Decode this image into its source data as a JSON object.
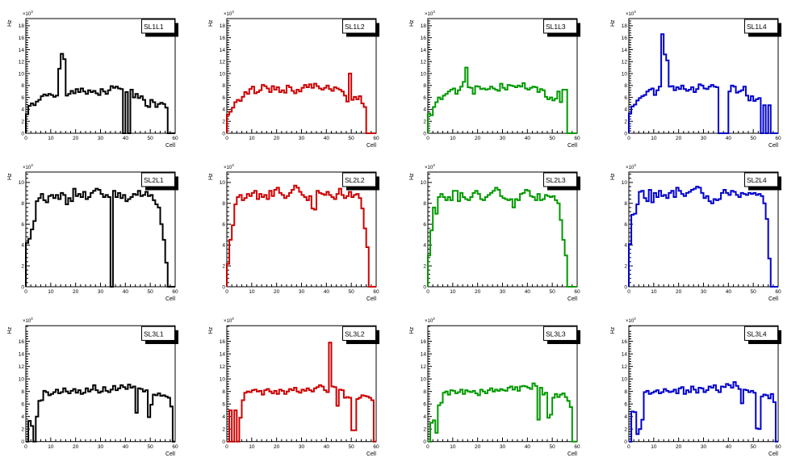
{
  "canvas": {
    "background": "#ffffff",
    "grid_rows": 3,
    "grid_cols": 4
  },
  "axes": {
    "x_title": "Cell",
    "y_title": "Hz",
    "scale_base": "×10",
    "scale_exponent": "3",
    "x_min": 0,
    "x_max": 60,
    "x_major_step": 10,
    "x_minor_step": 2,
    "y_major_step": 2,
    "y_minor_step": 0.4,
    "grid": "off",
    "tick_direction": "in"
  },
  "row_axis": [
    {
      "y_max": 19.2,
      "y_tick_max": 18
    },
    {
      "y_max": 11.0,
      "y_tick_max": 10
    },
    {
      "y_max": 18.5,
      "y_tick_max": 16
    }
  ],
  "colors": {
    "column1": "#000000",
    "column2": "#cc0000",
    "column3": "#009900",
    "column4": "#0000cc",
    "frame": "#000000",
    "pave_shadow": "#000000",
    "pave_fill": "#ffffff"
  },
  "chart_data": [
    {
      "type": "line",
      "subtype": "histogram-step",
      "title": "SL1L1",
      "color": "#000000",
      "row": 0,
      "col": 0,
      "xlabel": "Cell",
      "ylabel": "Hz",
      "y_scale": 1000,
      "x_range": [
        0,
        60
      ],
      "y_range": [
        0,
        19.2
      ],
      "bins": [
        3.2,
        4.6,
        5.0,
        4.7,
        5.3,
        5.6,
        6.2,
        6.5,
        6.3,
        6.6,
        6.4,
        6.1,
        6.3,
        10.8,
        13.3,
        12.4,
        6.3,
        6.6,
        7.1,
        6.7,
        7.4,
        6.9,
        7.5,
        7.0,
        6.6,
        7.2,
        6.9,
        7.1,
        6.7,
        6.4,
        7.4,
        7.0,
        6.6,
        7.2,
        7.9,
        7.6,
        7.8,
        7.5,
        7.4,
        0,
        6.9,
        0,
        7.3,
        6.0,
        6.6,
        5.9,
        6.2,
        5.6,
        4.6,
        4.4,
        5.6,
        5.2,
        4.4,
        4.9,
        5.1,
        4.9,
        4.3,
        0,
        0,
        0
      ]
    },
    {
      "type": "line",
      "subtype": "histogram-step",
      "title": "SL1L2",
      "color": "#cc0000",
      "row": 0,
      "col": 1,
      "xlabel": "Cell",
      "ylabel": "Hz",
      "y_scale": 1000,
      "x_range": [
        0,
        60
      ],
      "y_range": [
        0,
        19.2
      ],
      "bins": [
        3.1,
        3.6,
        4.3,
        5.2,
        5.6,
        5.4,
        6.1,
        6.9,
        6.6,
        7.4,
        7.8,
        6.7,
        6.9,
        7.2,
        8.1,
        7.9,
        7.5,
        6.9,
        7.9,
        7.3,
        7.7,
        6.9,
        7.2,
        6.8,
        8.0,
        7.7,
        7.1,
        6.7,
        7.3,
        7.0,
        7.6,
        8.1,
        7.7,
        8.2,
        7.6,
        8.3,
        7.9,
        7.5,
        7.3,
        7.6,
        8.0,
        7.4,
        7.1,
        7.7,
        7.5,
        7.3,
        7.0,
        6.3,
        5.3,
        10.0,
        5.6,
        6.1,
        5.7,
        6.2,
        5.0,
        4.4,
        0,
        0,
        0,
        0
      ]
    },
    {
      "type": "line",
      "subtype": "histogram-step",
      "title": "SL1L3",
      "color": "#009900",
      "row": 0,
      "col": 2,
      "xlabel": "Cell",
      "ylabel": "Hz",
      "y_scale": 1000,
      "x_range": [
        0,
        60
      ],
      "y_range": [
        0,
        19.2
      ],
      "bins": [
        3.3,
        3.0,
        4.4,
        5.2,
        6.0,
        5.7,
        6.3,
        6.6,
        7.0,
        7.3,
        7.5,
        6.6,
        7.2,
        7.8,
        8.6,
        11.0,
        7.7,
        7.6,
        6.6,
        7.9,
        7.8,
        7.4,
        7.5,
        7.3,
        7.4,
        7.8,
        7.5,
        7.3,
        7.1,
        8.3,
        7.6,
        7.3,
        8.1,
        8.0,
        7.9,
        7.7,
        8.0,
        7.8,
        8.4,
        7.5,
        7.3,
        7.6,
        7.8,
        7.7,
        6.9,
        7.4,
        7.2,
        6.1,
        5.7,
        6.0,
        5.5,
        5.8,
        7.0,
        5.2,
        7.3,
        7.3,
        0,
        0,
        0,
        0
      ]
    },
    {
      "type": "line",
      "subtype": "histogram-step",
      "title": "SL1L4",
      "color": "#0000cc",
      "row": 0,
      "col": 3,
      "xlabel": "Cell",
      "ylabel": "Hz",
      "y_scale": 1000,
      "x_range": [
        0,
        60
      ],
      "y_range": [
        0,
        19.2
      ],
      "bins": [
        3.3,
        4.5,
        4.8,
        5.5,
        5.9,
        6.2,
        6.4,
        7.0,
        7.3,
        7.5,
        6.4,
        7.2,
        7.8,
        16.6,
        13.2,
        12.2,
        7.8,
        7.9,
        7.2,
        7.7,
        7.4,
        8.0,
        7.4,
        7.1,
        7.3,
        7.7,
        6.9,
        7.4,
        8.2,
        8.0,
        7.5,
        7.4,
        7.8,
        8.1,
        7.8,
        7.7,
        0,
        0,
        0,
        0,
        7.0,
        8.0,
        7.8,
        6.8,
        7.0,
        7.2,
        7.8,
        6.3,
        5.5,
        6.2,
        5.4,
        5.7,
        5.9,
        0,
        4.7,
        0,
        4.7,
        0,
        0,
        0
      ]
    },
    {
      "type": "line",
      "subtype": "histogram-step",
      "title": "SL2L1",
      "color": "#000000",
      "row": 1,
      "col": 0,
      "xlabel": "Cell",
      "ylabel": "Hz",
      "y_scale": 1000,
      "x_range": [
        0,
        60
      ],
      "y_range": [
        0,
        11
      ],
      "bins": [
        4.2,
        4.6,
        5.5,
        6.3,
        8.2,
        8.5,
        8.9,
        8.3,
        8.1,
        8.7,
        8.8,
        8.5,
        8.8,
        8.4,
        9.0,
        8.8,
        7.9,
        8.5,
        8.2,
        9.4,
        8.7,
        8.9,
        8.6,
        9.1,
        8.4,
        8.6,
        9.0,
        9.2,
        9.4,
        9.3,
        8.9,
        8.6,
        8.8,
        8.6,
        0,
        9.2,
        8.6,
        9.0,
        8.5,
        8.8,
        8.2,
        8.4,
        8.6,
        8.9,
        8.8,
        9.2,
        8.7,
        8.8,
        9.1,
        8.7,
        8.8,
        8.3,
        7.9,
        7.6,
        6.0,
        4.5,
        2.3,
        0,
        0,
        0
      ]
    },
    {
      "type": "line",
      "subtype": "histogram-step",
      "title": "SL2L2",
      "color": "#cc0000",
      "row": 1,
      "col": 1,
      "xlabel": "Cell",
      "ylabel": "Hz",
      "y_scale": 1000,
      "x_range": [
        0,
        60
      ],
      "y_range": [
        0,
        11
      ],
      "bins": [
        2.2,
        4.5,
        5.9,
        7.9,
        8.6,
        8.8,
        8.3,
        8.5,
        8.9,
        8.7,
        9.0,
        9.2,
        8.4,
        8.9,
        8.6,
        8.8,
        8.4,
        9.2,
        8.7,
        9.3,
        9.5,
        9.0,
        8.8,
        8.5,
        8.7,
        9.0,
        9.3,
        9.7,
        9.5,
        9.1,
        8.8,
        8.6,
        8.3,
        8.7,
        7.5,
        7.4,
        9.2,
        9.0,
        8.9,
        8.8,
        9.1,
        8.8,
        8.6,
        8.4,
        8.9,
        9.4,
        8.8,
        8.5,
        8.7,
        9.1,
        8.6,
        8.8,
        8.9,
        8.5,
        7.5,
        5.6,
        3.8,
        0,
        0,
        0
      ]
    },
    {
      "type": "line",
      "subtype": "histogram-step",
      "title": "SL2L3",
      "color": "#009900",
      "row": 1,
      "col": 2,
      "xlabel": "Cell",
      "ylabel": "Hz",
      "y_scale": 1000,
      "x_range": [
        0,
        60
      ],
      "y_range": [
        0,
        11
      ],
      "bins": [
        3.0,
        5.4,
        7.6,
        7.0,
        8.6,
        8.9,
        8.6,
        8.3,
        8.6,
        8.3,
        9.2,
        9.2,
        8.2,
        9.0,
        8.6,
        8.4,
        8.3,
        8.6,
        9.0,
        9.2,
        8.9,
        8.4,
        8.3,
        8.6,
        8.8,
        9.0,
        9.2,
        9.5,
        9.3,
        8.7,
        8.5,
        8.4,
        8.3,
        8.4,
        7.6,
        8.4,
        8.3,
        8.9,
        9.0,
        9.3,
        9.2,
        8.7,
        8.6,
        8.3,
        8.9,
        8.3,
        8.4,
        8.8,
        8.7,
        8.6,
        8.7,
        8.3,
        8.0,
        6.4,
        4.5,
        3.0,
        0,
        0,
        0,
        0
      ]
    },
    {
      "type": "line",
      "subtype": "histogram-step",
      "title": "SL2L4",
      "color": "#0000cc",
      "row": 1,
      "col": 3,
      "xlabel": "Cell",
      "ylabel": "Hz",
      "y_scale": 1000,
      "x_range": [
        0,
        60
      ],
      "y_range": [
        0,
        11
      ],
      "bins": [
        4.1,
        6.9,
        7.0,
        7.9,
        9.1,
        9.2,
        8.5,
        8.2,
        9.3,
        8.1,
        9.0,
        8.6,
        9.2,
        8.7,
        8.8,
        8.5,
        9.0,
        9.2,
        8.6,
        9.5,
        9.2,
        8.9,
        8.7,
        9.0,
        9.1,
        9.3,
        9.4,
        9.6,
        9.5,
        9.0,
        8.5,
        8.7,
        8.2,
        8.0,
        8.4,
        8.3,
        8.4,
        9.0,
        9.3,
        9.0,
        8.8,
        9.2,
        9.1,
        8.8,
        8.6,
        9.0,
        8.9,
        8.8,
        9.0,
        8.9,
        9.0,
        8.8,
        8.9,
        8.7,
        8.0,
        6.5,
        2.7,
        0,
        0,
        0
      ]
    },
    {
      "type": "line",
      "subtype": "histogram-step",
      "title": "SL3L1",
      "color": "#000000",
      "row": 2,
      "col": 0,
      "xlabel": "Cell",
      "ylabel": "Hz",
      "y_scale": 1000,
      "x_range": [
        0,
        60
      ],
      "y_range": [
        0,
        18.5
      ],
      "bins": [
        0,
        3.3,
        2.5,
        0,
        4.0,
        6.5,
        6.6,
        8.1,
        7.9,
        7.4,
        7.6,
        7.9,
        8.3,
        7.7,
        7.9,
        8.5,
        8.0,
        7.7,
        8.1,
        8.4,
        7.8,
        8.2,
        7.6,
        7.8,
        8.5,
        8.0,
        8.3,
        9.0,
        8.2,
        7.8,
        8.0,
        8.7,
        8.1,
        7.9,
        8.3,
        8.9,
        8.2,
        8.5,
        9.0,
        8.7,
        8.4,
        9.1,
        8.6,
        8.8,
        4.6,
        8.5,
        8.4,
        8.0,
        8.2,
        3.9,
        5.9,
        7.5,
        7.4,
        7.7,
        7.3,
        7.4,
        7.2,
        7.0,
        5.6,
        0
      ]
    },
    {
      "type": "line",
      "subtype": "histogram-step",
      "title": "SL3L2",
      "color": "#cc0000",
      "row": 2,
      "col": 1,
      "xlabel": "Cell",
      "ylabel": "Hz",
      "y_scale": 1000,
      "x_range": [
        0,
        60
      ],
      "y_range": [
        0,
        18.5
      ],
      "bins": [
        0,
        5.0,
        0,
        5.0,
        0,
        3.8,
        6.6,
        7.8,
        8.0,
        7.9,
        8.2,
        8.3,
        8.0,
        8.1,
        7.5,
        8.2,
        8.4,
        8.0,
        7.7,
        8.1,
        7.6,
        8.3,
        8.1,
        7.6,
        8.0,
        8.4,
        8.2,
        8.6,
        8.0,
        7.8,
        8.3,
        8.1,
        8.5,
        8.2,
        8.0,
        8.5,
        8.7,
        9.0,
        8.8,
        8.2,
        7.9,
        15.8,
        8.8,
        8.7,
        5.7,
        8.3,
        8.2,
        7.0,
        7.1,
        7.0,
        1.8,
        1.8,
        6.8,
        7.0,
        7.4,
        7.3,
        7.2,
        7.0,
        6.6,
        0
      ]
    },
    {
      "type": "line",
      "subtype": "histogram-step",
      "title": "SL3L3",
      "color": "#009900",
      "row": 2,
      "col": 2,
      "xlabel": "Cell",
      "ylabel": "Hz",
      "y_scale": 1000,
      "x_range": [
        0,
        60
      ],
      "y_range": [
        0,
        18.5
      ],
      "bins": [
        0,
        3.0,
        3.4,
        1.4,
        5.8,
        6.2,
        7.8,
        8.0,
        7.5,
        8.2,
        8.1,
        7.7,
        7.9,
        8.3,
        7.6,
        8.2,
        8.0,
        7.9,
        8.1,
        7.7,
        7.4,
        8.3,
        8.0,
        7.7,
        8.2,
        8.5,
        8.0,
        8.3,
        8.1,
        8.4,
        8.2,
        8.1,
        8.6,
        8.8,
        8.3,
        8.7,
        8.1,
        8.8,
        8.9,
        8.8,
        8.6,
        8.4,
        9.3,
        8.9,
        3.5,
        8.6,
        7.5,
        7.8,
        3.8,
        4.3,
        7.0,
        7.6,
        7.1,
        7.5,
        7.7,
        7.1,
        6.5,
        5.5,
        0,
        0
      ]
    },
    {
      "type": "line",
      "subtype": "histogram-step",
      "title": "SL3L4",
      "color": "#0000cc",
      "row": 2,
      "col": 3,
      "xlabel": "Cell",
      "ylabel": "Hz",
      "y_scale": 1000,
      "x_range": [
        0,
        60
      ],
      "y_range": [
        0,
        18.5
      ],
      "bins": [
        0,
        4.8,
        4.7,
        1.2,
        2.0,
        3.5,
        7.9,
        8.1,
        7.6,
        7.8,
        8.0,
        8.2,
        7.7,
        7.9,
        8.4,
        8.1,
        7.9,
        8.0,
        8.3,
        7.7,
        8.5,
        8.7,
        7.6,
        8.2,
        7.9,
        8.8,
        8.3,
        7.8,
        8.6,
        8.5,
        7.9,
        8.2,
        8.8,
        8.6,
        9.0,
        8.2,
        7.9,
        8.8,
        8.7,
        9.2,
        9.0,
        8.6,
        9.5,
        8.9,
        8.4,
        6.1,
        8.3,
        8.2,
        7.9,
        8.1,
        7.8,
        2.1,
        2.0,
        7.2,
        7.5,
        7.4,
        6.9,
        7.6,
        6.3,
        0
      ]
    }
  ]
}
